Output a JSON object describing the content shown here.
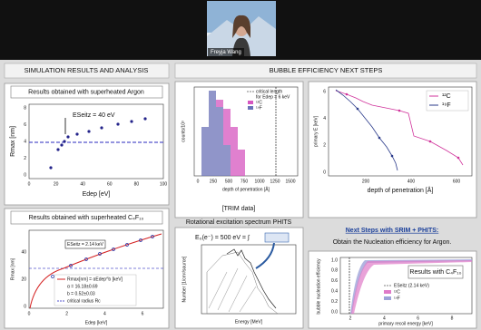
{
  "video": {
    "name": "Freyja Wang"
  },
  "slide": {
    "left_header": "SIMULATION RESULTS AND ANALYSIS",
    "right_header": "BUBBLE EFFICIENCY NEXT STEPS",
    "argon": {
      "title": "Results obtained with superheated Argon",
      "ylabel": "Rmax [nm]",
      "xlabel": "Edep [eV]",
      "annotation": "ESeitz = 40 eV",
      "xticks": [
        "0",
        "20",
        "40",
        "60",
        "80",
        "100"
      ],
      "yticks": [
        "0",
        "2",
        "4",
        "6",
        "8"
      ]
    },
    "c4f10": {
      "title": "Results obtained with superheated C₄F₁₀",
      "ylabel": "Rmax [nm]",
      "xlabel": "Edep [keV]",
      "annotation": "ESeitz = 2.14 keV",
      "legend": [
        "Rmax[nm] = αEdep^b [keV]",
        "α = 16.18±0.69",
        "b = 0.52±0.03",
        "critical radius Rc"
      ],
      "xticks": [
        "0",
        "2",
        "4",
        "6"
      ],
      "yticks": [
        "0",
        "20",
        "40"
      ]
    },
    "histogram": {
      "ylabel": "counts/10³",
      "xlabel": "depth of penetration [Å]",
      "caption": "[TRIM data]",
      "legend": [
        "critical length",
        "for Edep = 6 keV",
        "¹²C",
        "¹⁹F"
      ],
      "xticks": [
        "0",
        "250",
        "500",
        "750",
        "1000",
        "1250",
        "1500"
      ]
    },
    "phits": {
      "label": "Rotational excitation spectrum PHITS",
      "formula": "E₀(e⁻) = 500 eV = ∫",
      "ylabel": "Number [1/cm²/source]",
      "xlabel": "Energy [MeV]"
    },
    "penetration": {
      "ylabel": "primary E [keV]",
      "xlabel": "depth of penetration [Å]",
      "legend": [
        "¹²C",
        "¹⁹F"
      ],
      "xticks": [
        "200",
        "400",
        "600"
      ],
      "yticks": [
        "0",
        "2",
        "4",
        "6"
      ]
    },
    "next_steps": {
      "title": "Next Steps with SRIM + PHITS:",
      "text": "Obtain the Nucleation efficiency for Argon."
    },
    "efficiency": {
      "ylabel": "bubble nucleation efficiency",
      "xlabel": "primary recoil energy [keV]",
      "callout": "Results with C₄F₁₀",
      "legend": [
        "ESeitz (2.14 keV)",
        "¹²C",
        "¹⁹F"
      ],
      "xticks": [
        "2",
        "4",
        "6",
        "8"
      ],
      "yticks": [
        "0.0",
        "0.2",
        "0.4",
        "0.6",
        "0.8",
        "1.0"
      ]
    }
  }
}
